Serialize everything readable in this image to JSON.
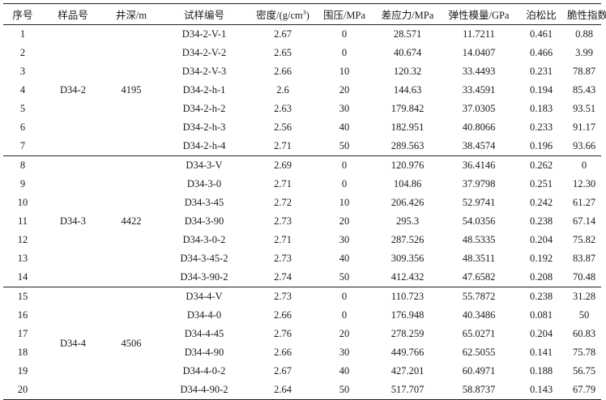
{
  "table": {
    "headers": [
      {
        "text": "序号"
      },
      {
        "text": "样品号"
      },
      {
        "text": "井深/m"
      },
      {
        "text": "试样编号"
      },
      {
        "text": "密度/(g/cm",
        "sup": "3",
        "tail": ")"
      },
      {
        "text": "围压/MPa"
      },
      {
        "text": "差应力/MPa"
      },
      {
        "text": "弹性模量/GPa"
      },
      {
        "text": "泊松比"
      },
      {
        "text": "脆性指数"
      }
    ],
    "groups": [
      {
        "sample": "D34-2",
        "depth": "4195",
        "rows": [
          {
            "no": "1",
            "id": "D34-2-V-1",
            "density": "2.67",
            "confining": "0",
            "stress": "28.571",
            "modulus": "11.7211",
            "poisson": "0.461",
            "brittleness": "0.88"
          },
          {
            "no": "2",
            "id": "D34-2-V-2",
            "density": "2.65",
            "confining": "0",
            "stress": "40.674",
            "modulus": "14.0407",
            "poisson": "0.466",
            "brittleness": "3.99"
          },
          {
            "no": "3",
            "id": "D34-2-V-3",
            "density": "2.66",
            "confining": "10",
            "stress": "120.32",
            "modulus": "33.4493",
            "poisson": "0.231",
            "brittleness": "78.87"
          },
          {
            "no": "4",
            "id": "D34-2-h-1",
            "density": "2.6",
            "confining": "20",
            "stress": "144.63",
            "modulus": "33.4591",
            "poisson": "0.194",
            "brittleness": "85.43"
          },
          {
            "no": "5",
            "id": "D34-2-h-2",
            "density": "2.63",
            "confining": "30",
            "stress": "179.842",
            "modulus": "37.0305",
            "poisson": "0.183",
            "brittleness": "93.51"
          },
          {
            "no": "6",
            "id": "D34-2-h-3",
            "density": "2.56",
            "confining": "40",
            "stress": "182.951",
            "modulus": "40.8066",
            "poisson": "0.233",
            "brittleness": "91.17"
          },
          {
            "no": "7",
            "id": "D34-2-h-4",
            "density": "2.71",
            "confining": "50",
            "stress": "289.563",
            "modulus": "38.4574",
            "poisson": "0.196",
            "brittleness": "93.66"
          }
        ]
      },
      {
        "sample": "D34-3",
        "depth": "4422",
        "rows": [
          {
            "no": "8",
            "id": "D34-3-V",
            "density": "2.69",
            "confining": "0",
            "stress": "120.976",
            "modulus": "36.4146",
            "poisson": "0.262",
            "brittleness": "0"
          },
          {
            "no": "9",
            "id": "D34-3-0",
            "density": "2.71",
            "confining": "0",
            "stress": "104.86",
            "modulus": "37.9798",
            "poisson": "0.251",
            "brittleness": "12.30"
          },
          {
            "no": "10",
            "id": "D34-3-45",
            "density": "2.72",
            "confining": "10",
            "stress": "206.426",
            "modulus": "52.9741",
            "poisson": "0.242",
            "brittleness": "61.27"
          },
          {
            "no": "11",
            "id": "D34-3-90",
            "density": "2.73",
            "confining": "20",
            "stress": "295.3",
            "modulus": "54.0356",
            "poisson": "0.238",
            "brittleness": "67.14"
          },
          {
            "no": "12",
            "id": "D34-3-0-2",
            "density": "2.71",
            "confining": "30",
            "stress": "287.526",
            "modulus": "48.5335",
            "poisson": "0.204",
            "brittleness": "75.82"
          },
          {
            "no": "13",
            "id": "D34-3-45-2",
            "density": "2.73",
            "confining": "40",
            "stress": "309.356",
            "modulus": "48.3511",
            "poisson": "0.192",
            "brittleness": "83.87"
          },
          {
            "no": "14",
            "id": "D34-3-90-2",
            "density": "2.74",
            "confining": "50",
            "stress": "412.432",
            "modulus": "47.6582",
            "poisson": "0.208",
            "brittleness": "70.48"
          }
        ]
      },
      {
        "sample": "D34-4",
        "depth": "4506",
        "rows": [
          {
            "no": "15",
            "id": "D34-4-V",
            "density": "2.73",
            "confining": "0",
            "stress": "110.723",
            "modulus": "55.7872",
            "poisson": "0.238",
            "brittleness": "31.28"
          },
          {
            "no": "16",
            "id": "D34-4-0",
            "density": "2.66",
            "confining": "0",
            "stress": "176.948",
            "modulus": "40.3486",
            "poisson": "0.081",
            "brittleness": "50"
          },
          {
            "no": "17",
            "id": "D34-4-45",
            "density": "2.76",
            "confining": "20",
            "stress": "278.259",
            "modulus": "65.0271",
            "poisson": "0.204",
            "brittleness": "60.83"
          },
          {
            "no": "18",
            "id": "D34-4-90",
            "density": "2.66",
            "confining": "30",
            "stress": "449.766",
            "modulus": "62.5055",
            "poisson": "0.141",
            "brittleness": "75.78"
          },
          {
            "no": "19",
            "id": "D34-4-0-2",
            "density": "2.67",
            "confining": "40",
            "stress": "427.201",
            "modulus": "60.4971",
            "poisson": "0.188",
            "brittleness": "56.75"
          },
          {
            "no": "20",
            "id": "D34-4-90-2",
            "density": "2.64",
            "confining": "50",
            "stress": "517.707",
            "modulus": "58.8737",
            "poisson": "0.143",
            "brittleness": "67.79"
          }
        ]
      }
    ]
  }
}
